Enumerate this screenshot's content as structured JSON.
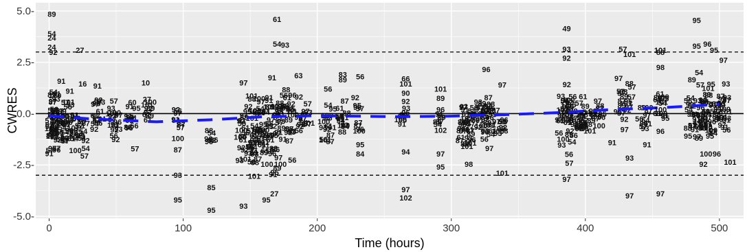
{
  "chart_data": {
    "type": "scatter",
    "title": "",
    "xlabel": "Time (hours)",
    "ylabel": "CWRES",
    "xlim": [
      -10,
      518
    ],
    "ylim": [
      -5.1,
      5.4
    ],
    "x_ticks": [
      0,
      100,
      200,
      300,
      400,
      500
    ],
    "y_ticks": [
      5.0,
      2.5,
      0.0,
      -2.5,
      -5.0
    ],
    "x_tick_labels": [
      "0",
      "100",
      "200",
      "300",
      "400",
      "500"
    ],
    "y_tick_labels": [
      "5.0-",
      "2.5-",
      "0.0-",
      "-2.5-",
      "-5.0-"
    ],
    "grid": true,
    "background": "#ebebeb",
    "reference_lines": [
      {
        "y": 0,
        "style": "solid",
        "color": "#000000"
      },
      {
        "y": 3,
        "style": "dashed",
        "color": "#000000"
      },
      {
        "y": -3,
        "style": "dashed",
        "color": "#000000"
      }
    ],
    "trend": {
      "style": "dashed",
      "color": "#1a1aff",
      "points": [
        [
          0,
          -0.1
        ],
        [
          30,
          -0.25
        ],
        [
          80,
          -0.4
        ],
        [
          120,
          -0.3
        ],
        [
          160,
          -0.15
        ],
        [
          200,
          -0.1
        ],
        [
          260,
          -0.15
        ],
        [
          300,
          -0.12
        ],
        [
          340,
          -0.05
        ],
        [
          380,
          0.05
        ],
        [
          420,
          0.2
        ],
        [
          460,
          0.3
        ],
        [
          500,
          0.45
        ]
      ]
    },
    "labeled_points": [
      {
        "x": 2,
        "y": 4.85,
        "label": "89"
      },
      {
        "x": 2,
        "y": 3.9,
        "label": "54"
      },
      {
        "x": 2,
        "y": 3.7,
        "label": "24"
      },
      {
        "x": 2,
        "y": 3.25,
        "label": "24"
      },
      {
        "x": 3,
        "y": 3.0,
        "label": "92"
      },
      {
        "x": 23,
        "y": 3.1,
        "label": "27"
      },
      {
        "x": 25,
        "y": 1.45,
        "label": "16"
      },
      {
        "x": 36,
        "y": 1.35,
        "label": "91"
      },
      {
        "x": 72,
        "y": 1.5,
        "label": "10"
      },
      {
        "x": 73,
        "y": 0.7,
        "label": "27"
      },
      {
        "x": 62,
        "y": 0.55,
        "label": "60"
      },
      {
        "x": 64,
        "y": -1.7,
        "label": "57"
      },
      {
        "x": 96,
        "y": -1.75,
        "label": "87"
      },
      {
        "x": 96,
        "y": -1.2,
        "label": "100"
      },
      {
        "x": 96,
        "y": -3.0,
        "label": "93"
      },
      {
        "x": 96,
        "y": -4.2,
        "label": "95"
      },
      {
        "x": 121,
        "y": -3.6,
        "label": "85"
      },
      {
        "x": 121,
        "y": -4.7,
        "label": "95"
      },
      {
        "x": 145,
        "y": -4.5,
        "label": "93"
      },
      {
        "x": 145,
        "y": 1.5,
        "label": "97"
      },
      {
        "x": 170,
        "y": 4.6,
        "label": "61"
      },
      {
        "x": 170,
        "y": 3.4,
        "label": "54"
      },
      {
        "x": 176,
        "y": 3.35,
        "label": "93"
      },
      {
        "x": 186,
        "y": 1.85,
        "label": "63"
      },
      {
        "x": 168,
        "y": -3.9,
        "label": "27"
      },
      {
        "x": 162,
        "y": -4.2,
        "label": "95"
      },
      {
        "x": 208,
        "y": 1.2,
        "label": "56"
      },
      {
        "x": 219,
        "y": 1.9,
        "label": "83"
      },
      {
        "x": 219,
        "y": 1.65,
        "label": "89"
      },
      {
        "x": 232,
        "y": 1.8,
        "label": "56"
      },
      {
        "x": 232,
        "y": -1.5,
        "label": "95"
      },
      {
        "x": 232,
        "y": -1.95,
        "label": "84"
      },
      {
        "x": 266,
        "y": 1.7,
        "label": "66"
      },
      {
        "x": 266,
        "y": 1.45,
        "label": "101"
      },
      {
        "x": 266,
        "y": 1.0,
        "label": "90"
      },
      {
        "x": 266,
        "y": 0.6,
        "label": "92"
      },
      {
        "x": 266,
        "y": 0.05,
        "label": "95"
      },
      {
        "x": 266,
        "y": -1.85,
        "label": "94"
      },
      {
        "x": 266,
        "y": -3.7,
        "label": "97"
      },
      {
        "x": 266,
        "y": -4.1,
        "label": "102"
      },
      {
        "x": 292,
        "y": 1.2,
        "label": "101"
      },
      {
        "x": 292,
        "y": 0.75,
        "label": "89"
      },
      {
        "x": 292,
        "y": 0.2,
        "label": "96"
      },
      {
        "x": 292,
        "y": -0.8,
        "label": "102"
      },
      {
        "x": 292,
        "y": -1.95,
        "label": "97"
      },
      {
        "x": 292,
        "y": -2.6,
        "label": "95"
      },
      {
        "x": 313,
        "y": -2.45,
        "label": "98"
      },
      {
        "x": 338,
        "y": -2.9,
        "label": "101"
      },
      {
        "x": 326,
        "y": 2.15,
        "label": "96"
      },
      {
        "x": 338,
        "y": 1.4,
        "label": "97"
      },
      {
        "x": 386,
        "y": 4.15,
        "label": "49"
      },
      {
        "x": 386,
        "y": 3.15,
        "label": "93"
      },
      {
        "x": 386,
        "y": 2.7,
        "label": "92"
      },
      {
        "x": 386,
        "y": -3.2,
        "label": "97"
      },
      {
        "x": 388,
        "y": -2.4,
        "label": "57"
      },
      {
        "x": 420,
        "y": -1.4,
        "label": "91"
      },
      {
        "x": 428,
        "y": 3.15,
        "label": "57"
      },
      {
        "x": 433,
        "y": 2.9,
        "label": "101"
      },
      {
        "x": 433,
        "y": -2.15,
        "label": "93"
      },
      {
        "x": 433,
        "y": -4.0,
        "label": "97"
      },
      {
        "x": 446,
        "y": -1.5,
        "label": "91"
      },
      {
        "x": 456,
        "y": 3.1,
        "label": "101"
      },
      {
        "x": 456,
        "y": 3.0,
        "label": "88"
      },
      {
        "x": 456,
        "y": 2.25,
        "label": "98"
      },
      {
        "x": 456,
        "y": 0.2,
        "label": "100"
      },
      {
        "x": 456,
        "y": -0.85,
        "label": "96"
      },
      {
        "x": 456,
        "y": -3.9,
        "label": "97"
      },
      {
        "x": 483,
        "y": 4.55,
        "label": "95"
      },
      {
        "x": 483,
        "y": 3.3,
        "label": "95"
      },
      {
        "x": 491,
        "y": 3.4,
        "label": "96"
      },
      {
        "x": 496,
        "y": 3.1,
        "label": "95"
      },
      {
        "x": 503,
        "y": 2.6,
        "label": "97"
      },
      {
        "x": 490,
        "y": -1.95,
        "label": "100"
      },
      {
        "x": 498,
        "y": -1.95,
        "label": "96"
      },
      {
        "x": 508,
        "y": -2.35,
        "label": "101"
      },
      {
        "x": 488,
        "y": -2.45,
        "label": "92"
      }
    ],
    "dense_clusters": [
      {
        "x": [
          0,
          6
        ],
        "y": [
          -2.7,
          2.3
        ],
        "n": 40
      },
      {
        "x": [
          6,
          16
        ],
        "y": [
          -2.5,
          1.8
        ],
        "n": 30
      },
      {
        "x": [
          16,
          28
        ],
        "y": [
          -2.6,
          1.4
        ],
        "n": 24
      },
      {
        "x": [
          33,
          40
        ],
        "y": [
          -1.5,
          1.2
        ],
        "n": 14
      },
      {
        "x": [
          46,
          52
        ],
        "y": [
          -1.6,
          1.1
        ],
        "n": 14
      },
      {
        "x": [
          58,
          66
        ],
        "y": [
          -1.4,
          0.7
        ],
        "n": 10
      },
      {
        "x": [
          70,
          76
        ],
        "y": [
          -0.6,
          1.0
        ],
        "n": 8
      },
      {
        "x": [
          94,
          100
        ],
        "y": [
          -1.2,
          0.6
        ],
        "n": 8
      },
      {
        "x": [
          118,
          124
        ],
        "y": [
          -1.9,
          -0.6
        ],
        "n": 6
      },
      {
        "x": [
          142,
          158
        ],
        "y": [
          -3.3,
          1.5
        ],
        "n": 50
      },
      {
        "x": [
          158,
          174
        ],
        "y": [
          -3.6,
          2.2
        ],
        "n": 55
      },
      {
        "x": [
          174,
          182
        ],
        "y": [
          -2.6,
          2.0
        ],
        "n": 20
      },
      {
        "x": [
          186,
          194
        ],
        "y": [
          -1.6,
          1.3
        ],
        "n": 14
      },
      {
        "x": [
          204,
          212
        ],
        "y": [
          -1.8,
          1.1
        ],
        "n": 14
      },
      {
        "x": [
          216,
          222
        ],
        "y": [
          -1.6,
          1.0
        ],
        "n": 12
      },
      {
        "x": [
          228,
          234
        ],
        "y": [
          -1.3,
          0.9
        ],
        "n": 8
      },
      {
        "x": [
          262,
          268
        ],
        "y": [
          -0.9,
          0.6
        ],
        "n": 6
      },
      {
        "x": [
          288,
          294
        ],
        "y": [
          -0.9,
          0.5
        ],
        "n": 6
      },
      {
        "x": [
          306,
          316
        ],
        "y": [
          -2.4,
          1.6
        ],
        "n": 30
      },
      {
        "x": [
          316,
          330
        ],
        "y": [
          -2.3,
          2.0
        ],
        "n": 32
      },
      {
        "x": [
          330,
          340
        ],
        "y": [
          -1.9,
          1.3
        ],
        "n": 14
      },
      {
        "x": [
          380,
          392
        ],
        "y": [
          -2.6,
          2.6
        ],
        "n": 36
      },
      {
        "x": [
          392,
          404
        ],
        "y": [
          -1.6,
          1.2
        ],
        "n": 22
      },
      {
        "x": [
          404,
          414
        ],
        "y": [
          -1.3,
          1.1
        ],
        "n": 12
      },
      {
        "x": [
          424,
          436
        ],
        "y": [
          -1.2,
          2.4
        ],
        "n": 18
      },
      {
        "x": [
          440,
          448
        ],
        "y": [
          -1.4,
          1.0
        ],
        "n": 10
      },
      {
        "x": [
          452,
          460
        ],
        "y": [
          -1.1,
          2.3
        ],
        "n": 12
      },
      {
        "x": [
          476,
          490
        ],
        "y": [
          -2.4,
          2.5
        ],
        "n": 40
      },
      {
        "x": [
          490,
          506
        ],
        "y": [
          -2.2,
          2.6
        ],
        "n": 40
      }
    ]
  }
}
